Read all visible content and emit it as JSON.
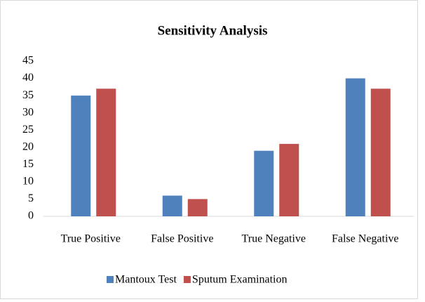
{
  "chart_data": {
    "type": "bar",
    "title": "Sensitivity Analysis",
    "categories": [
      "True Positive",
      "False Positive",
      "True Negative",
      "False Negative"
    ],
    "series": [
      {
        "name": "Mantoux Test",
        "color": "#4f81bd",
        "values": [
          35,
          6,
          19,
          40
        ]
      },
      {
        "name": "Sputum Examination",
        "color": "#c0504d",
        "values": [
          37,
          5,
          21,
          37
        ]
      }
    ],
    "ylim": [
      0,
      45
    ],
    "yticks": [
      0,
      5,
      10,
      15,
      20,
      25,
      30,
      35,
      40,
      45
    ],
    "grid": false,
    "legend": "bottom"
  }
}
